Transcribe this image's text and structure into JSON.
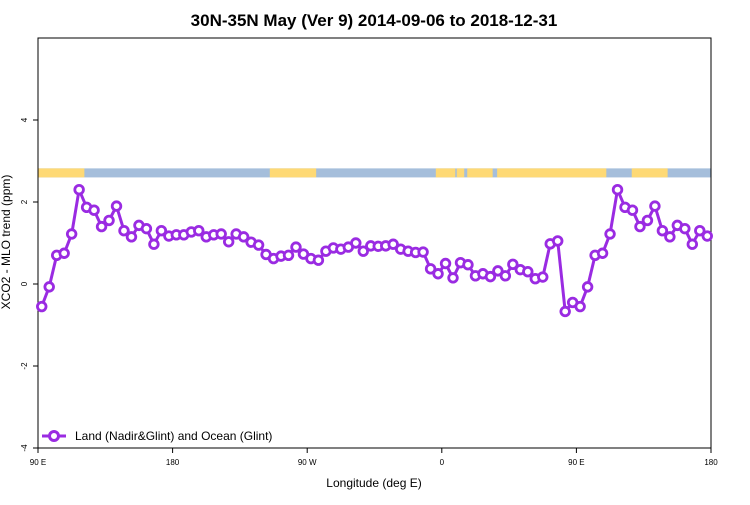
{
  "chart_data": {
    "type": "line",
    "title": "30N-35N May (Ver 9)   2014-09-06 to 2018-12-31",
    "xlabel": "Longitude (deg E)",
    "ylabel": "XCO2 - MLO trend (ppm)",
    "xlim": [
      90,
      540
    ],
    "ylim": [
      -4,
      6
    ],
    "x_ticks": [
      {
        "value": 90,
        "label": "90 E"
      },
      {
        "value": 180,
        "label": "180"
      },
      {
        "value": 270,
        "label": "90 W"
      },
      {
        "value": 360,
        "label": "0"
      },
      {
        "value": 450,
        "label": "90 E"
      },
      {
        "value": 540,
        "label": "180"
      }
    ],
    "y_ticks": [
      {
        "value": -4,
        "label": "-4"
      },
      {
        "value": -2,
        "label": "-2"
      },
      {
        "value": 0,
        "label": "0"
      },
      {
        "value": 2,
        "label": "2"
      },
      {
        "value": 4,
        "label": "4"
      }
    ],
    "grid": false,
    "legend": {
      "placement": "bottom-left"
    },
    "series": [
      {
        "name": "Land (Nadir&Glint) and Ocean (Glint)",
        "color": "#9a2be2",
        "x": [
          92.5,
          97.5,
          102.5,
          107.5,
          112.5,
          117.5,
          122.5,
          127.5,
          132.5,
          137.5,
          142.5,
          147.5,
          152.5,
          157.5,
          162.5,
          167.5,
          172.5,
          177.5,
          182.5,
          187.5,
          192.5,
          197.5,
          202.5,
          207.5,
          212.5,
          217.5,
          222.5,
          227.5,
          232.5,
          237.5,
          242.5,
          247.5,
          252.5,
          257.5,
          262.5,
          267.5,
          272.5,
          277.5,
          282.5,
          287.5,
          292.5,
          297.5,
          302.5,
          307.5,
          312.5,
          317.5,
          322.5,
          327.5,
          332.5,
          337.5,
          342.5,
          347.5,
          352.5,
          357.5,
          362.5,
          367.5,
          372.5,
          377.5,
          382.5,
          387.5,
          392.5,
          397.5,
          402.5,
          407.5,
          412.5,
          417.5,
          422.5,
          427.5,
          432.5,
          437.5,
          442.5,
          447.5,
          452.5,
          457.5,
          462.5,
          467.5,
          472.5,
          477.5,
          482.5,
          487.5,
          492.5,
          497.5,
          502.5,
          507.5,
          512.5,
          517.5,
          522.5,
          527.5,
          532.5,
          537.5
        ],
        "y": [
          -0.55,
          -0.07,
          0.7,
          0.75,
          1.22,
          2.3,
          1.87,
          1.8,
          1.4,
          1.55,
          1.9,
          1.3,
          1.15,
          1.43,
          1.35,
          0.97,
          1.3,
          1.17,
          1.2,
          1.2,
          1.27,
          1.3,
          1.15,
          1.2,
          1.22,
          1.03,
          1.22,
          1.15,
          1.02,
          0.95,
          0.72,
          0.62,
          0.68,
          0.7,
          0.9,
          0.73,
          0.62,
          0.58,
          0.8,
          0.88,
          0.85,
          0.9,
          1.0,
          0.8,
          0.93,
          0.92,
          0.93,
          0.97,
          0.85,
          0.8,
          0.77,
          0.78,
          0.37,
          0.25,
          0.5,
          0.15,
          0.52,
          0.47,
          0.2,
          0.25,
          0.18,
          0.32,
          0.2,
          0.48,
          0.35,
          0.3,
          0.13,
          0.17,
          0.98,
          1.05,
          -0.67,
          -0.45,
          -0.55,
          -0.07,
          0.7,
          0.75,
          1.22,
          2.3,
          1.87,
          1.8,
          1.4,
          1.55,
          1.9,
          1.3,
          1.15,
          1.43,
          1.35,
          0.97,
          1.3,
          1.17
        ]
      }
    ],
    "land_ocean_band": {
      "y_range": [
        2.6,
        2.82
      ],
      "land_color": "#fed975",
      "ocean_color": "#a5bedb",
      "land_spans": [
        [
          90,
          121
        ],
        [
          245,
          276
        ],
        [
          356,
          369
        ],
        [
          377,
          394
        ],
        [
          370,
          375
        ],
        [
          397,
          470
        ],
        [
          487,
          511
        ]
      ]
    }
  }
}
